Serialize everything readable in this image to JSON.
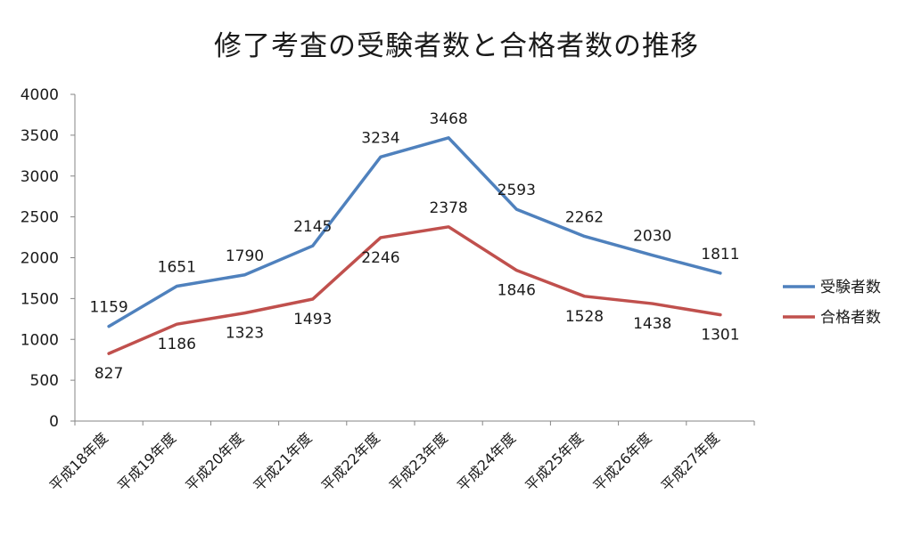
{
  "chart_data": {
    "type": "line",
    "title": "修了考査の受験者数と合格者数の推移",
    "xlabel": "",
    "ylabel": "",
    "categories": [
      "平成18年度",
      "平成19年度",
      "平成20年度",
      "平成21年度",
      "平成22年度",
      "平成23年度",
      "平成24年度",
      "平成25年度",
      "平成26年度",
      "平成27年度"
    ],
    "series": [
      {
        "name": "受験者数",
        "color": "#4f81bd",
        "values": [
          1159,
          1651,
          1790,
          2145,
          3234,
          3468,
          2593,
          2262,
          2030,
          1811
        ]
      },
      {
        "name": "合格者数",
        "color": "#c0504d",
        "values": [
          827,
          1186,
          1323,
          1493,
          2246,
          2378,
          1846,
          1528,
          1438,
          1301
        ]
      }
    ],
    "ylim": [
      0,
      4000
    ],
    "yticks": [
      0,
      500,
      1000,
      1500,
      2000,
      2500,
      3000,
      3500,
      4000
    ],
    "grid": false,
    "legend_position": "right",
    "data_labels": true
  }
}
